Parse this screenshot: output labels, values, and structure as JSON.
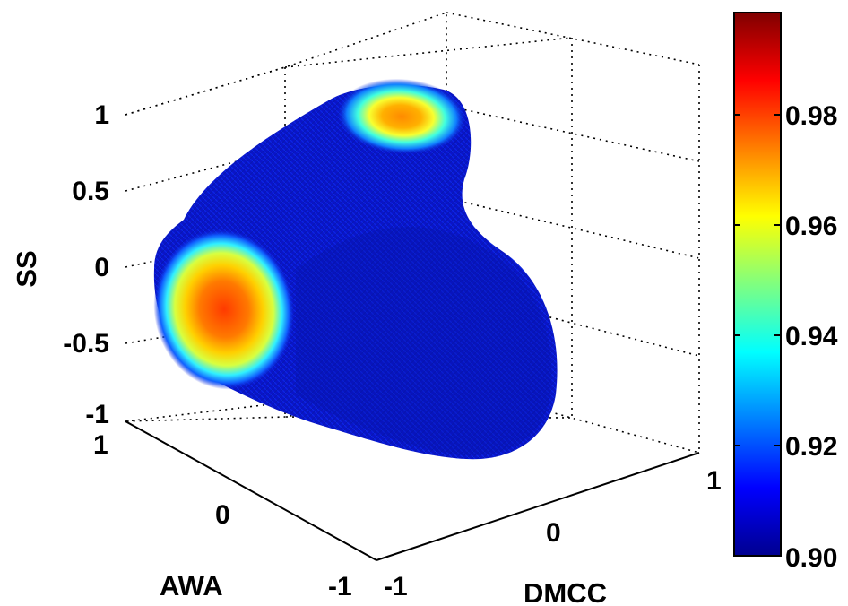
{
  "chart_data": {
    "type": "surface3d",
    "axes": {
      "x": {
        "label": "DMCC",
        "ticks": [
          "-1",
          "0",
          "1"
        ],
        "range": [
          -1,
          1
        ]
      },
      "y": {
        "label": "AWA",
        "ticks": [
          "1",
          "0",
          "-1"
        ],
        "range": [
          -1,
          1
        ]
      },
      "z": {
        "label": "SS",
        "ticks": [
          "1",
          "0.5",
          "0",
          "-0.5",
          "-1"
        ],
        "range": [
          -1,
          1
        ]
      }
    },
    "grid": true,
    "colorbar": {
      "position": "right",
      "colormap": "jet",
      "range": [
        0.9,
        0.99
      ],
      "ticks": [
        "0.98",
        "0.96",
        "0.94",
        "0.92",
        "0.90"
      ]
    },
    "surface": {
      "description_values": {
        "bulk_value": 0.9,
        "hotspots": [
          {
            "location": "front-left face",
            "peak": 0.98
          },
          {
            "location": "top",
            "peak": 0.97
          }
        ]
      }
    }
  }
}
